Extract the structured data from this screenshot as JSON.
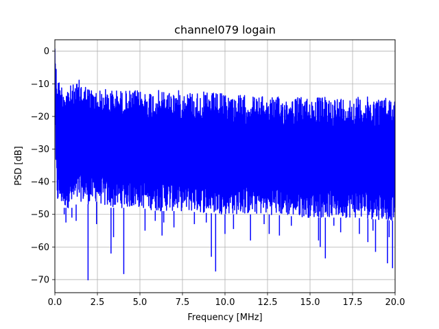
{
  "chart_data": {
    "type": "line",
    "title": "channel079 logain",
    "xlabel": "Frequency [MHz]",
    "ylabel": "PSD [dB]",
    "xlim": [
      0,
      20
    ],
    "ylim": [
      -74,
      3.5
    ],
    "xticks": [
      0.0,
      2.5,
      5.0,
      7.5,
      10.0,
      12.5,
      15.0,
      17.5,
      20.0
    ],
    "xtick_labels": [
      "0.0",
      "2.5",
      "5.0",
      "7.5",
      "10.0",
      "12.5",
      "15.0",
      "17.5",
      "20.0"
    ],
    "yticks": [
      0,
      -10,
      -20,
      -30,
      -40,
      -50,
      -60,
      -70
    ],
    "ytick_labels": [
      "0",
      "−10",
      "−20",
      "−30",
      "−40",
      "−50",
      "−60",
      "−70"
    ],
    "grid": true,
    "series": [
      {
        "color": "#0000ff",
        "envelope_x": [
          0.0,
          0.05,
          0.15,
          0.3,
          0.5,
          1.0,
          1.5,
          2.0,
          2.5,
          3.0,
          4.0,
          5.0,
          6.0,
          7.5,
          10.0,
          12.5,
          15.0,
          17.5,
          20.0
        ],
        "envelope_upper": [
          1.5,
          -3.0,
          -7.0,
          -9.5,
          -10.0,
          -10.5,
          -8.5,
          -11.0,
          -12.0,
          -11.5,
          -12.0,
          -12.0,
          -12.0,
          -12.0,
          -13.0,
          -14.0,
          -14.0,
          -14.0,
          -14.0
        ],
        "envelope_lower": [
          -3.0,
          -38.0,
          -47.0,
          -47.0,
          -48.0,
          -48.0,
          -46.0,
          -47.0,
          -46.0,
          -48.0,
          -48.0,
          -48.0,
          -49.0,
          -49.0,
          -50.0,
          -50.0,
          -51.0,
          -51.0,
          -52.0
        ],
        "dips": [
          {
            "x": 0.55,
            "y": -50.0
          },
          {
            "x": 0.65,
            "y": -52.5
          },
          {
            "x": 1.0,
            "y": -51.0
          },
          {
            "x": 1.25,
            "y": -52.0
          },
          {
            "x": 1.95,
            "y": -70.2
          },
          {
            "x": 2.45,
            "y": -53.0
          },
          {
            "x": 3.3,
            "y": -62.0
          },
          {
            "x": 3.45,
            "y": -57.0
          },
          {
            "x": 4.05,
            "y": -68.3
          },
          {
            "x": 5.3,
            "y": -55.0
          },
          {
            "x": 5.9,
            "y": -52.0
          },
          {
            "x": 6.3,
            "y": -56.5
          },
          {
            "x": 6.4,
            "y": -52.5
          },
          {
            "x": 7.0,
            "y": -54.0
          },
          {
            "x": 8.2,
            "y": -53.0
          },
          {
            "x": 8.9,
            "y": -52.5
          },
          {
            "x": 9.2,
            "y": -63.0
          },
          {
            "x": 9.45,
            "y": -67.5
          },
          {
            "x": 10.0,
            "y": -56.0
          },
          {
            "x": 10.5,
            "y": -54.5
          },
          {
            "x": 11.5,
            "y": -58.0
          },
          {
            "x": 12.3,
            "y": -53.0
          },
          {
            "x": 12.6,
            "y": -56.0
          },
          {
            "x": 13.2,
            "y": -56.5
          },
          {
            "x": 13.9,
            "y": -53.5
          },
          {
            "x": 15.5,
            "y": -58.0
          },
          {
            "x": 15.6,
            "y": -60.0
          },
          {
            "x": 15.9,
            "y": -63.5
          },
          {
            "x": 16.4,
            "y": -53.5
          },
          {
            "x": 16.8,
            "y": -55.5
          },
          {
            "x": 17.9,
            "y": -56.0
          },
          {
            "x": 18.4,
            "y": -58.5
          },
          {
            "x": 18.7,
            "y": -55.0
          },
          {
            "x": 18.85,
            "y": -61.5
          },
          {
            "x": 19.55,
            "y": -65.0
          },
          {
            "x": 19.65,
            "y": -57.0
          },
          {
            "x": 19.85,
            "y": -66.5
          }
        ]
      }
    ]
  }
}
